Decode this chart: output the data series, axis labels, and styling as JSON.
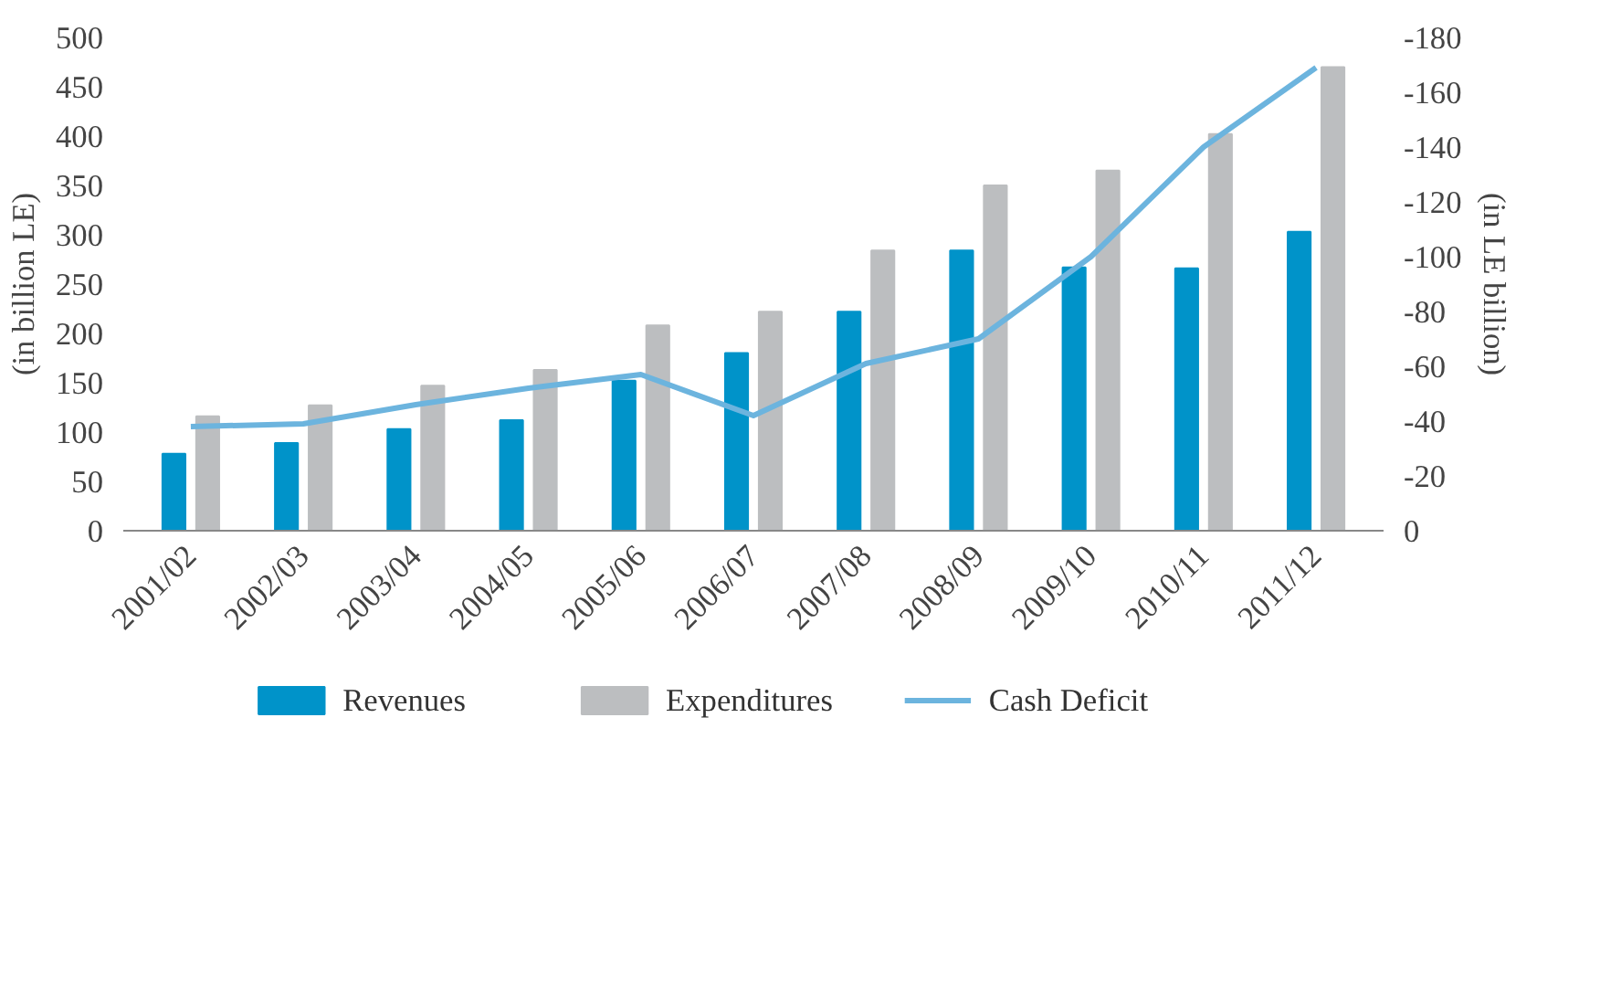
{
  "chart_data": {
    "type": "bar",
    "categories": [
      "2001/02",
      "2002/03",
      "2003/04",
      "2004/05",
      "2005/06",
      "2006/07",
      "2007/08",
      "2008/09",
      "2009/10",
      "2010/11",
      "2011/12"
    ],
    "series": [
      {
        "name": "Revenues",
        "color": "#0093c9",
        "values": [
          78,
          89,
          103,
          112,
          152,
          180,
          222,
          284,
          267,
          266,
          303
        ]
      },
      {
        "name": "Expenditures",
        "color": "#bcbec0",
        "values": [
          116,
          127,
          147,
          163,
          208,
          222,
          284,
          350,
          365,
          402,
          470
        ]
      },
      {
        "name": "Cash Deficit",
        "type": "line",
        "axis": "y2",
        "color": "#6cb4de",
        "values": [
          -38,
          -39,
          -46,
          -52,
          -57,
          -42,
          -61,
          -70,
          -100,
          -140,
          -169
        ]
      }
    ],
    "ylabel": "(in billion LE)",
    "y2label": "(in LE billion)",
    "ylim": [
      0,
      500
    ],
    "yticks": [
      0,
      50,
      100,
      150,
      200,
      250,
      300,
      350,
      400,
      450,
      500
    ],
    "y2lim": [
      0,
      -180
    ],
    "y2ticks": [
      0,
      -20,
      -40,
      -60,
      -80,
      -100,
      -120,
      -140,
      -160,
      -180
    ],
    "grid": false,
    "legend": "bottom"
  }
}
